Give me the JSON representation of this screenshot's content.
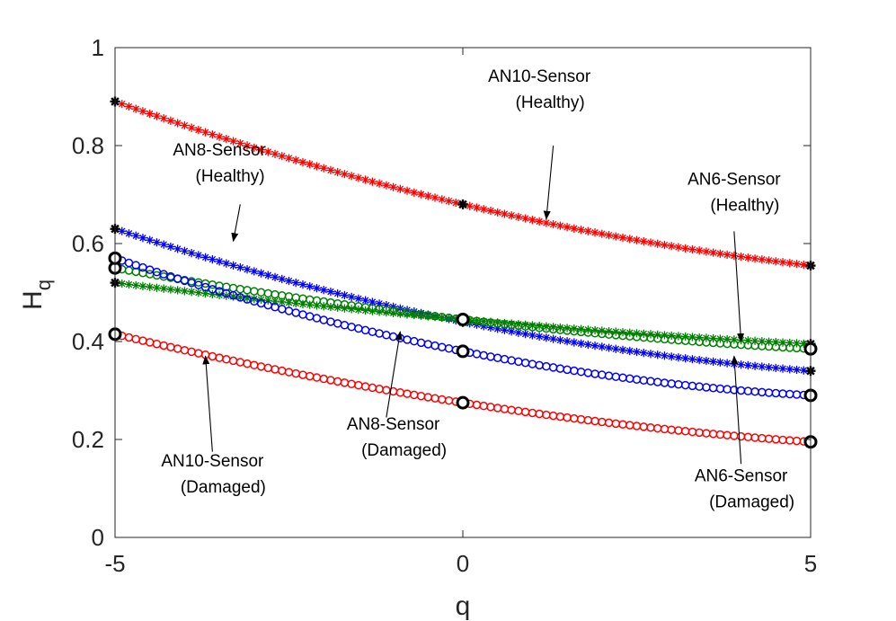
{
  "chart_data": {
    "type": "line",
    "title": "",
    "xlabel": "q",
    "ylabel_main": "H",
    "ylabel_sub": "q",
    "xlim": [
      -5,
      5
    ],
    "ylim": [
      0,
      1
    ],
    "xticks": [
      -5,
      0,
      5
    ],
    "xtick_labels": [
      "-5",
      "0",
      "5"
    ],
    "yticks": [
      0,
      0.2,
      0.4,
      0.6,
      0.8,
      1
    ],
    "ytick_labels": [
      "0",
      "0.2",
      "0.4",
      "0.6",
      "0.8",
      "1"
    ],
    "grid": false,
    "colors": {
      "red": "#ff0000",
      "blue": "#0000ff",
      "green": "#008000",
      "endpoint": "#000000"
    },
    "series": [
      {
        "name": "AN10-Sensor (Healthy)",
        "color": "#ff0000",
        "marker": "asterisk",
        "x": [
          -5,
          0,
          5
        ],
        "y": [
          0.89,
          0.68,
          0.555
        ]
      },
      {
        "name": "AN8-Sensor (Healthy)",
        "color": "#0000ff",
        "marker": "asterisk",
        "x": [
          -5,
          0,
          5
        ],
        "y": [
          0.63,
          0.44,
          0.34
        ]
      },
      {
        "name": "AN6-Sensor (Healthy)",
        "color": "#008000",
        "marker": "asterisk",
        "x": [
          -5,
          0,
          5
        ],
        "y": [
          0.52,
          0.445,
          0.395
        ]
      },
      {
        "name": "AN6-Sensor (Damaged)",
        "color": "#008000",
        "marker": "circle",
        "x": [
          -5,
          0,
          5
        ],
        "y": [
          0.55,
          0.445,
          0.385
        ]
      },
      {
        "name": "AN8-Sensor (Damaged)",
        "color": "#0000ff",
        "marker": "circle",
        "x": [
          -5,
          0,
          5
        ],
        "y": [
          0.57,
          0.38,
          0.29
        ]
      },
      {
        "name": "AN10-Sensor (Damaged)",
        "color": "#ff0000",
        "marker": "circle",
        "x": [
          -5,
          0,
          5
        ],
        "y": [
          0.415,
          0.275,
          0.195
        ]
      }
    ],
    "annotations": [
      {
        "line1": "AN10-Sensor",
        "line2": "(Healthy)",
        "text_x": 1.1,
        "text_y": 0.93,
        "arrow_from": [
          1.3,
          0.8
        ],
        "arrow_to": [
          1.2,
          0.65
        ]
      },
      {
        "line1": "AN8-Sensor",
        "line2": "(Healthy)",
        "text_x": -3.5,
        "text_y": 0.78,
        "arrow_from": [
          -3.2,
          0.68
        ],
        "arrow_to": [
          -3.3,
          0.605
        ]
      },
      {
        "line1": "AN6-Sensor",
        "line2": "(Healthy)",
        "text_x": 3.9,
        "text_y": 0.72,
        "arrow_from": [
          3.9,
          0.625
        ],
        "arrow_to": [
          4.0,
          0.4
        ]
      },
      {
        "line1": "AN8-Sensor",
        "line2": "(Damaged)",
        "text_x": -1.0,
        "text_y": 0.22,
        "arrow_from": [
          -1.1,
          0.245
        ],
        "arrow_to": [
          -0.9,
          0.42
        ]
      },
      {
        "line1": "AN10-Sensor",
        "line2": "(Damaged)",
        "text_x": -3.6,
        "text_y": 0.145,
        "arrow_from": [
          -3.6,
          0.175
        ],
        "arrow_to": [
          -3.7,
          0.37
        ]
      },
      {
        "line1": "AN6-Sensor",
        "line2": "(Damaged)",
        "text_x": 4.0,
        "text_y": 0.115,
        "arrow_from": [
          4.0,
          0.15
        ],
        "arrow_to": [
          3.9,
          0.37
        ]
      }
    ]
  }
}
